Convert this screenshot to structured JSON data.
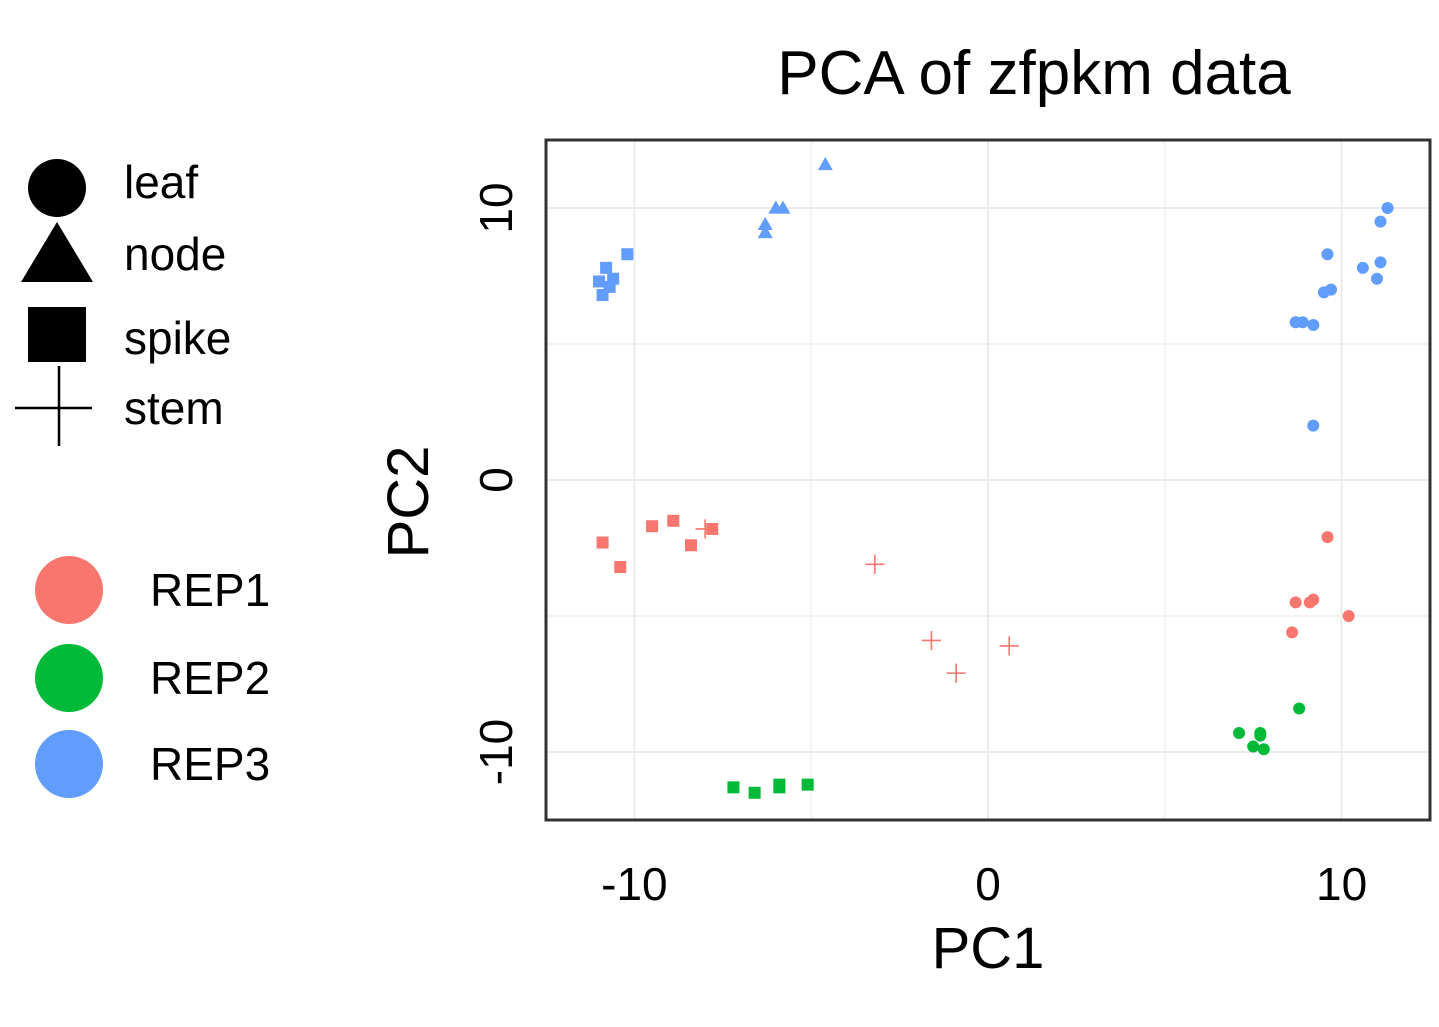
{
  "chart_data": {
    "type": "scatter",
    "title": "PCA of zfpkm data",
    "xlabel": "PC1",
    "ylabel": "PC2",
    "xlim": [
      -12.5,
      12.5
    ],
    "ylim": [
      -12.5,
      12.5
    ],
    "x_ticks": [
      -10,
      0,
      10
    ],
    "x_tick_labels": [
      "-10",
      "0",
      "10"
    ],
    "y_ticks": [
      -10,
      0,
      10
    ],
    "y_tick_labels": [
      "-10",
      "0",
      "10"
    ],
    "grid": true,
    "legend_position": "left",
    "shape_legend": {
      "entries": [
        {
          "label": "leaf",
          "shape": "circle"
        },
        {
          "label": "node",
          "shape": "triangle"
        },
        {
          "label": "spike",
          "shape": "square"
        },
        {
          "label": "stem",
          "shape": "plus"
        }
      ]
    },
    "color_legend": {
      "entries": [
        {
          "label": "REP1",
          "color": "#F8766D"
        },
        {
          "label": "REP2",
          "color": "#00BA38"
        },
        {
          "label": "REP3",
          "color": "#619CFF"
        }
      ]
    },
    "series": [
      {
        "name": "REP1",
        "color": "#F8766D",
        "points": [
          {
            "x": -10.9,
            "y": -2.3,
            "shape": "square"
          },
          {
            "x": -10.4,
            "y": -3.2,
            "shape": "square"
          },
          {
            "x": -9.5,
            "y": -1.7,
            "shape": "square"
          },
          {
            "x": -8.9,
            "y": -1.5,
            "shape": "square"
          },
          {
            "x": -8.4,
            "y": -2.4,
            "shape": "square"
          },
          {
            "x": -7.8,
            "y": -1.8,
            "shape": "square"
          },
          {
            "x": -8.0,
            "y": -1.8,
            "shape": "plus"
          },
          {
            "x": -3.2,
            "y": -3.1,
            "shape": "plus"
          },
          {
            "x": -1.6,
            "y": -5.9,
            "shape": "plus"
          },
          {
            "x": -0.9,
            "y": -7.1,
            "shape": "plus"
          },
          {
            "x": 0.6,
            "y": -6.1,
            "shape": "plus"
          },
          {
            "x": 9.6,
            "y": -2.1,
            "shape": "circle"
          },
          {
            "x": 8.7,
            "y": -4.5,
            "shape": "circle"
          },
          {
            "x": 9.1,
            "y": -4.5,
            "shape": "circle"
          },
          {
            "x": 9.2,
            "y": -4.4,
            "shape": "circle"
          },
          {
            "x": 10.2,
            "y": -5.0,
            "shape": "circle"
          },
          {
            "x": 8.6,
            "y": -5.6,
            "shape": "circle"
          }
        ]
      },
      {
        "name": "REP2",
        "color": "#00BA38",
        "points": [
          {
            "x": -7.2,
            "y": -11.3,
            "shape": "square"
          },
          {
            "x": -6.6,
            "y": -11.5,
            "shape": "square"
          },
          {
            "x": -5.9,
            "y": -11.3,
            "shape": "square"
          },
          {
            "x": -5.9,
            "y": -11.2,
            "shape": "square"
          },
          {
            "x": -5.1,
            "y": -11.2,
            "shape": "square"
          },
          {
            "x": 8.8,
            "y": -8.4,
            "shape": "circle"
          },
          {
            "x": 7.1,
            "y": -9.3,
            "shape": "circle"
          },
          {
            "x": 7.7,
            "y": -9.3,
            "shape": "circle"
          },
          {
            "x": 7.7,
            "y": -9.4,
            "shape": "circle"
          },
          {
            "x": 7.5,
            "y": -9.8,
            "shape": "circle"
          },
          {
            "x": 7.8,
            "y": -9.9,
            "shape": "circle"
          }
        ]
      },
      {
        "name": "REP3",
        "color": "#619CFF",
        "points": [
          {
            "x": -11.0,
            "y": 7.3,
            "shape": "square"
          },
          {
            "x": -10.8,
            "y": 7.8,
            "shape": "square"
          },
          {
            "x": -10.6,
            "y": 7.4,
            "shape": "square"
          },
          {
            "x": -10.9,
            "y": 6.8,
            "shape": "square"
          },
          {
            "x": -10.7,
            "y": 7.1,
            "shape": "square"
          },
          {
            "x": -10.2,
            "y": 8.3,
            "shape": "square"
          },
          {
            "x": -6.3,
            "y": 9.4,
            "shape": "triangle"
          },
          {
            "x": -6.3,
            "y": 9.1,
            "shape": "triangle"
          },
          {
            "x": -6.0,
            "y": 10.0,
            "shape": "triangle"
          },
          {
            "x": -5.8,
            "y": 10.0,
            "shape": "triangle"
          },
          {
            "x": -4.6,
            "y": 11.6,
            "shape": "triangle"
          },
          {
            "x": 11.3,
            "y": 10.0,
            "shape": "circle"
          },
          {
            "x": 11.1,
            "y": 9.5,
            "shape": "circle"
          },
          {
            "x": 9.6,
            "y": 8.3,
            "shape": "circle"
          },
          {
            "x": 10.6,
            "y": 7.8,
            "shape": "circle"
          },
          {
            "x": 11.1,
            "y": 8.0,
            "shape": "circle"
          },
          {
            "x": 11.0,
            "y": 7.4,
            "shape": "circle"
          },
          {
            "x": 9.5,
            "y": 6.9,
            "shape": "circle"
          },
          {
            "x": 9.7,
            "y": 7.0,
            "shape": "circle"
          },
          {
            "x": 8.7,
            "y": 5.8,
            "shape": "circle"
          },
          {
            "x": 8.9,
            "y": 5.8,
            "shape": "circle"
          },
          {
            "x": 9.2,
            "y": 5.7,
            "shape": "circle"
          },
          {
            "x": 9.2,
            "y": 2.0,
            "shape": "circle"
          }
        ]
      }
    ]
  }
}
